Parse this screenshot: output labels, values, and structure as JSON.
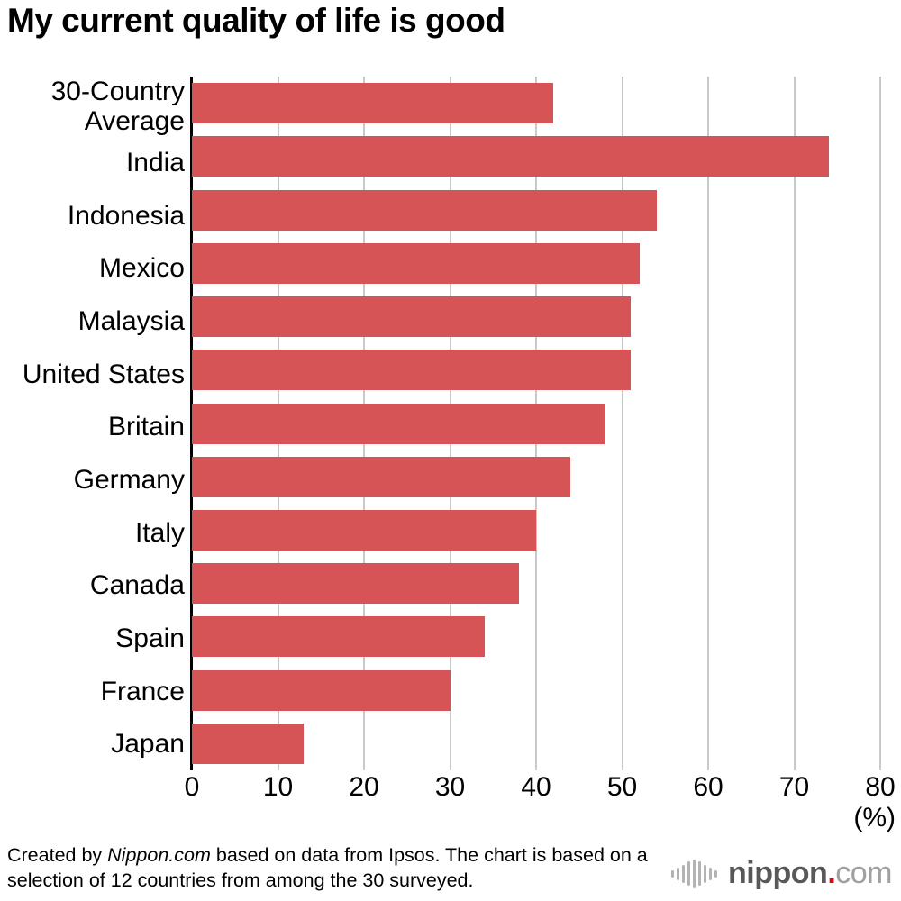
{
  "title": "My current quality of life is good",
  "chart_data": {
    "type": "bar",
    "orientation": "horizontal",
    "title": "My current quality of life is good",
    "categories": [
      "30-Country Average",
      "India",
      "Indonesia",
      "Mexico",
      "Malaysia",
      "United States",
      "Britain",
      "Germany",
      "Italy",
      "Canada",
      "Spain",
      "France",
      "Japan"
    ],
    "values": [
      42,
      74,
      54,
      52,
      51,
      51,
      48,
      44,
      40,
      38,
      34,
      30,
      13
    ],
    "xlabel": "(%)",
    "ylabel": "",
    "xlim": [
      0,
      80
    ],
    "xticks": [
      0,
      10,
      20,
      30,
      40,
      50,
      60,
      70,
      80
    ],
    "grid": true,
    "legend": "none",
    "bar_color": "#d65456",
    "gridline_color": "#c9c9c9",
    "axis_color": "#000000"
  },
  "footer": {
    "credit_prefix": "Created by ",
    "credit_italic": "Nippon.com",
    "credit_suffix": " based on data from Ipsos. The chart is based on a selection of 12 countries from among the 30 surveyed."
  },
  "logo": {
    "word": "nippon",
    "dot": ".",
    "tld": "com",
    "word_color": "#595757",
    "dot_color": "#e60012",
    "tld_color": "#9fa0a0"
  }
}
